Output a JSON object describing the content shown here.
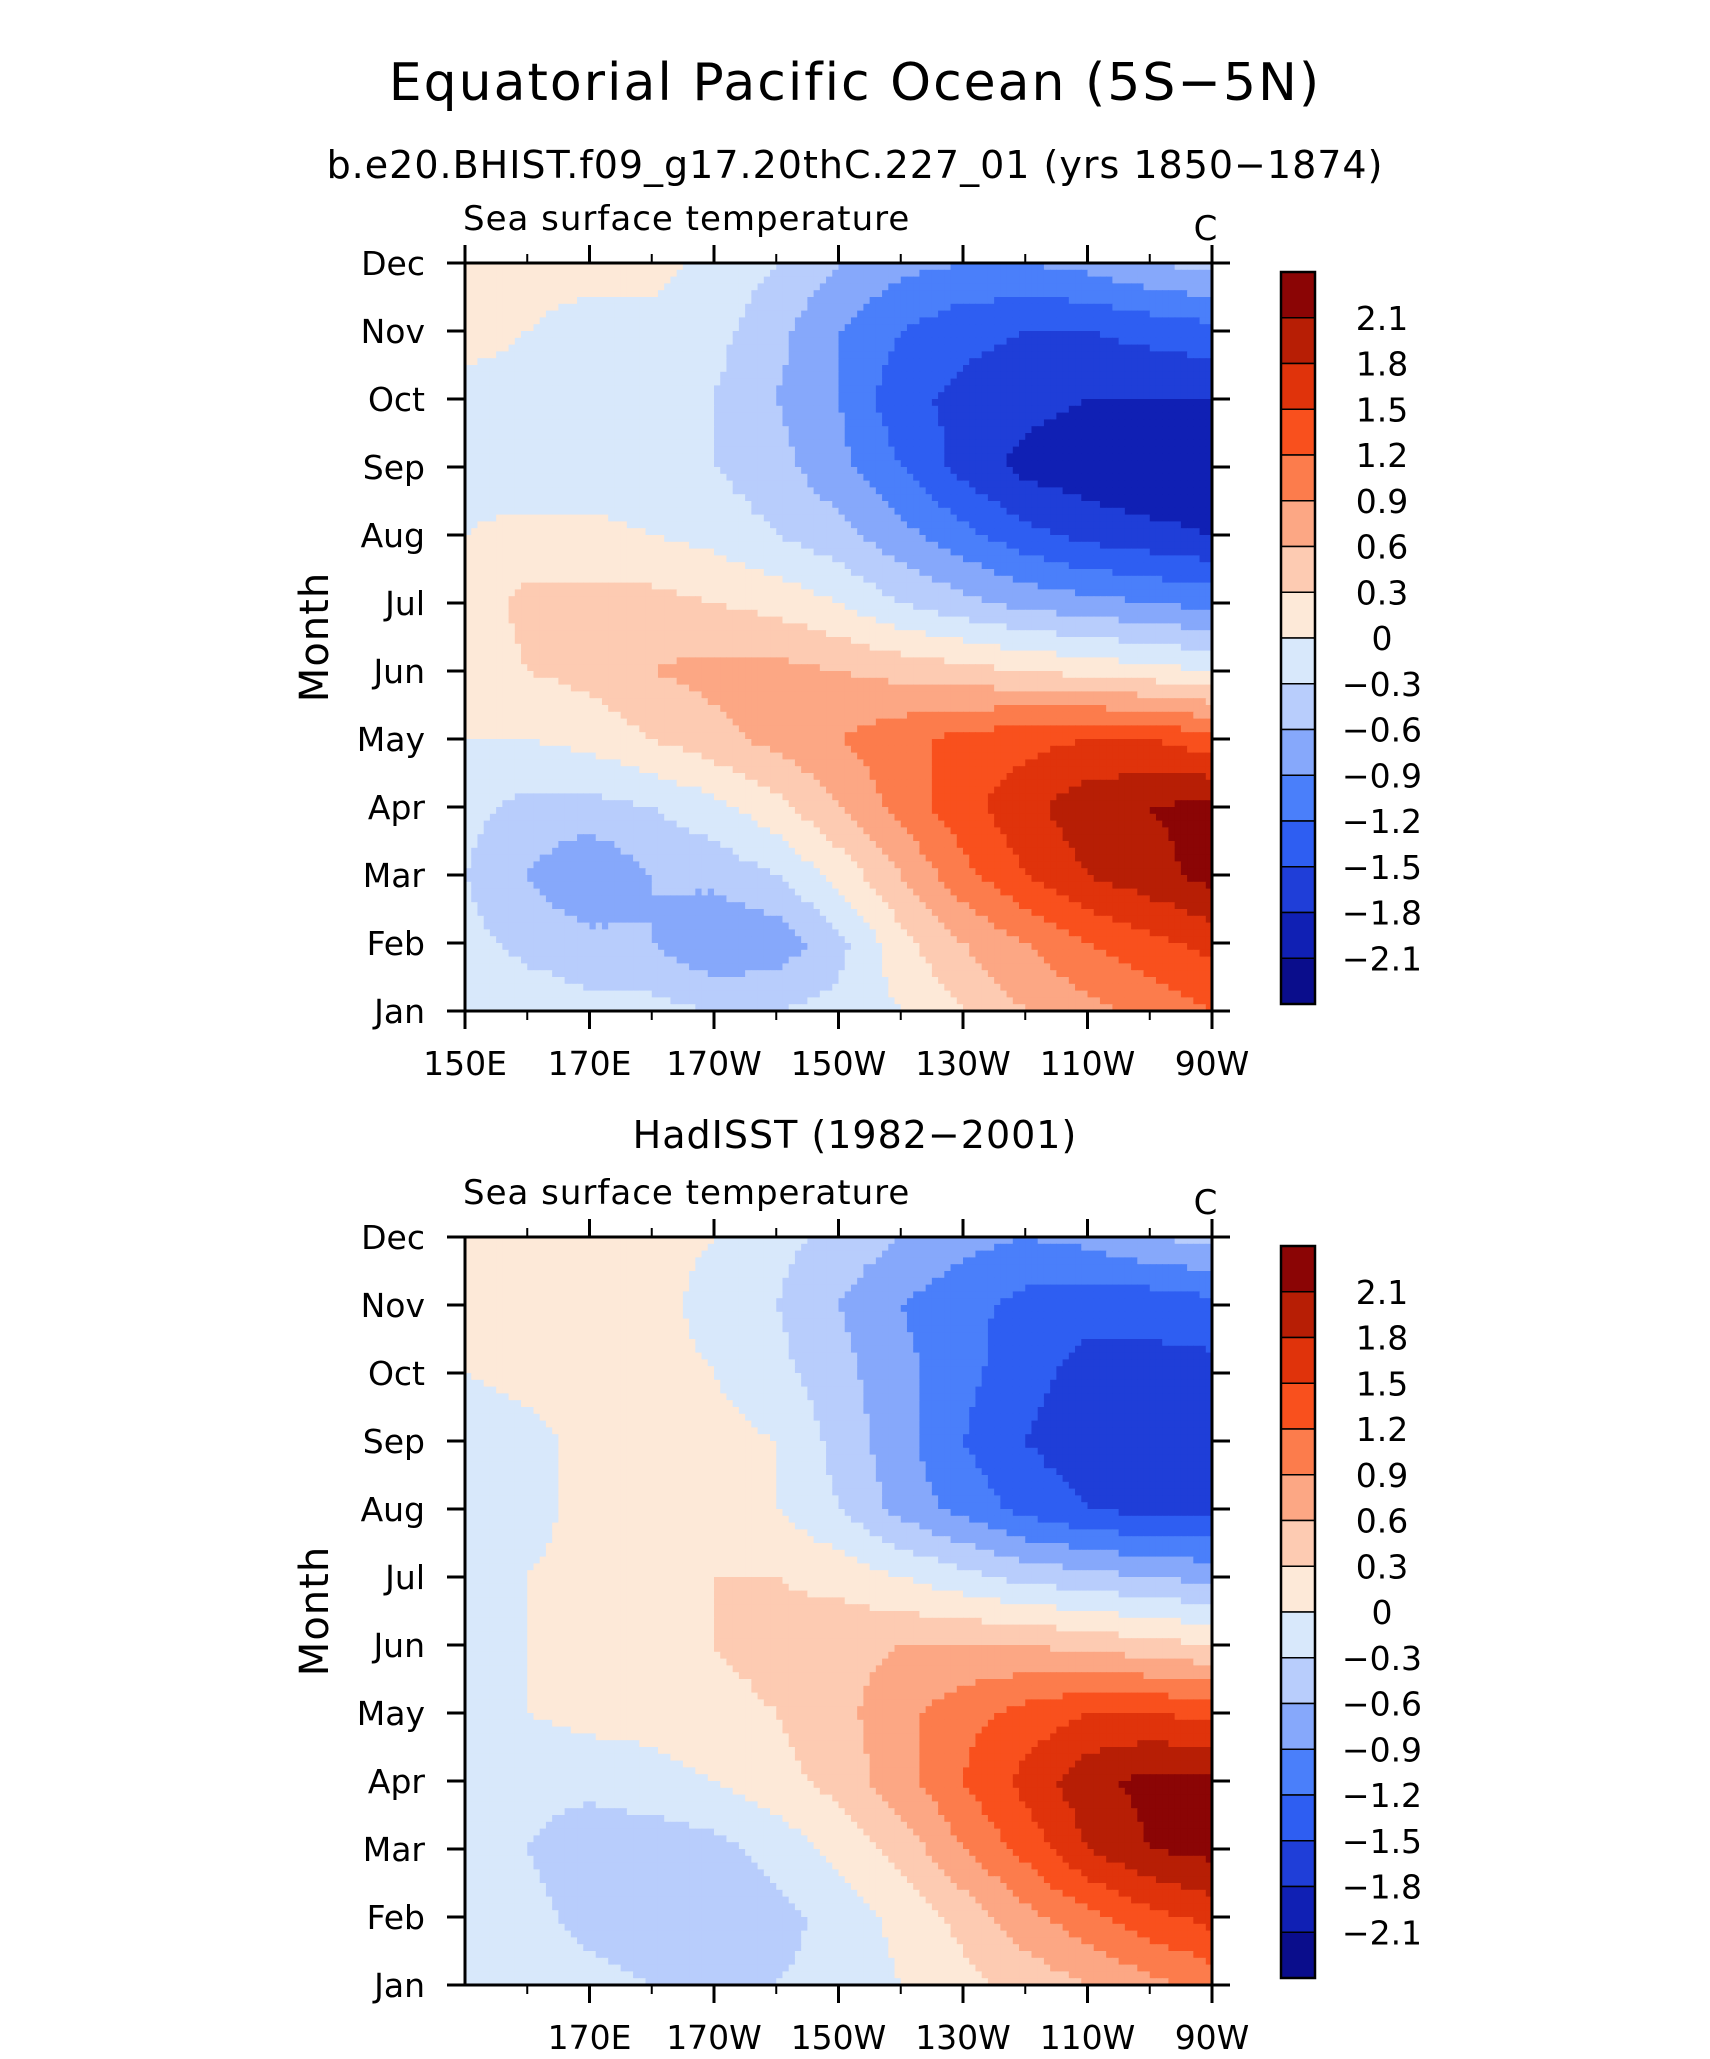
{
  "figure": {
    "title": "Equatorial Pacific Ocean (5S−5N)",
    "colorbar_levels": [
      "2.1",
      "1.8",
      "1.5",
      "1.2",
      "0.9",
      "0.6",
      "0.3",
      "0",
      "−0.3",
      "−0.6",
      "−0.9",
      "−1.2",
      "−1.5",
      "−1.8",
      "−2.1"
    ]
  },
  "chart_data": [
    {
      "type": "heatmap",
      "title": "b.e20.BHIST.f09_g17.20thC.227_01 (yrs 1850−1874)",
      "left_label": "Sea surface temperature",
      "units": "C",
      "ylabel": "Month",
      "xlabel": "",
      "x_tick_labels": [
        "150E",
        "170E",
        "170W",
        "150W",
        "130W",
        "110W",
        "90W"
      ],
      "x_tick_values": [
        150,
        170,
        190,
        210,
        230,
        250,
        270
      ],
      "xlim": [
        150,
        270
      ],
      "y_tick_labels": [
        "Jan",
        "Feb",
        "Mar",
        "Apr",
        "May",
        "Jun",
        "Jul",
        "Aug",
        "Sep",
        "Oct",
        "Nov",
        "Dec"
      ],
      "ylim": [
        1,
        12
      ],
      "colorscale": {
        "levels": [
          -2.1,
          -1.8,
          -1.5,
          -1.2,
          -0.9,
          -0.6,
          -0.3,
          0,
          0.3,
          0.6,
          0.9,
          1.2,
          1.5,
          1.8,
          2.1
        ],
        "colors": [
          "#0a0d8c",
          "#1020b4",
          "#1f3ed8",
          "#2e5ef2",
          "#4a7ffa",
          "#86a8fb",
          "#b8cdfc",
          "#d8e8fb",
          "#fde9d8",
          "#fdcbb2",
          "#fca784",
          "#fc7c4c",
          "#f9501d",
          "#e0330b",
          "#b71e05",
          "#8b0505"
        ]
      },
      "x": [
        150,
        160,
        170,
        180,
        190,
        200,
        210,
        220,
        230,
        240,
        250,
        260,
        270
      ],
      "y": [
        1,
        2,
        3,
        4,
        5,
        6,
        7,
        8,
        9,
        10,
        11,
        12
      ],
      "z": [
        [
          0.0,
          -0.1,
          -0.2,
          -0.2,
          -0.3,
          -0.3,
          -0.2,
          0.0,
          0.3,
          0.6,
          0.8,
          1.0,
          1.2
        ],
        [
          -0.2,
          -0.4,
          -0.5,
          -0.6,
          -0.9,
          -0.8,
          -0.4,
          0.2,
          0.6,
          0.9,
          1.2,
          1.4,
          1.6
        ],
        [
          -0.3,
          -0.6,
          -0.9,
          -0.6,
          -0.5,
          -0.3,
          0.1,
          0.6,
          1.1,
          1.5,
          1.8,
          2.0,
          2.2
        ],
        [
          -0.2,
          -0.4,
          -0.4,
          -0.3,
          -0.1,
          0.2,
          0.6,
          1.0,
          1.4,
          1.7,
          2.0,
          2.1,
          2.2
        ],
        [
          0.0,
          0.0,
          0.1,
          0.3,
          0.5,
          0.7,
          0.9,
          1.1,
          1.3,
          1.4,
          1.5,
          1.5,
          1.3
        ],
        [
          0.1,
          0.3,
          0.4,
          0.6,
          0.7,
          0.7,
          0.6,
          0.5,
          0.4,
          0.3,
          0.2,
          0.1,
          0.0
        ],
        [
          0.1,
          0.4,
          0.4,
          0.4,
          0.3,
          0.2,
          0.0,
          -0.3,
          -0.5,
          -0.7,
          -0.8,
          -0.9,
          -1.0
        ],
        [
          0.0,
          0.1,
          0.1,
          0.0,
          -0.1,
          -0.3,
          -0.5,
          -0.8,
          -1.1,
          -1.4,
          -1.6,
          -1.7,
          -1.8
        ],
        [
          -0.1,
          -0.2,
          -0.2,
          -0.2,
          -0.3,
          -0.5,
          -0.8,
          -1.2,
          -1.6,
          -1.9,
          -2.0,
          -2.1,
          -2.1
        ],
        [
          -0.1,
          -0.1,
          -0.1,
          -0.2,
          -0.3,
          -0.6,
          -0.9,
          -1.4,
          -1.6,
          -1.7,
          -1.8,
          -1.8,
          -1.8
        ],
        [
          0.1,
          0.0,
          -0.1,
          -0.1,
          -0.2,
          -0.5,
          -0.9,
          -1.2,
          -1.4,
          -1.5,
          -1.5,
          -1.4,
          -1.3
        ],
        [
          0.1,
          0.1,
          0.1,
          0.1,
          -0.1,
          -0.3,
          -0.6,
          -0.8,
          -0.9,
          -0.9,
          -0.8,
          -0.6,
          -0.5
        ]
      ]
    },
    {
      "type": "heatmap",
      "title": "HadISST (1982−2001)",
      "left_label": "Sea surface temperature",
      "units": "C",
      "ylabel": "Month",
      "xlabel": "",
      "x_tick_labels": [
        "170E",
        "170W",
        "150W",
        "130W",
        "110W",
        "90W"
      ],
      "x_tick_values": [
        170,
        190,
        210,
        230,
        250,
        270
      ],
      "xlim": [
        150,
        270
      ],
      "y_tick_labels": [
        "Jan",
        "Feb",
        "Mar",
        "Apr",
        "May",
        "Jun",
        "Jul",
        "Aug",
        "Sep",
        "Oct",
        "Nov",
        "Dec"
      ],
      "ylim": [
        1,
        12
      ],
      "colorscale": {
        "levels": [
          -2.1,
          -1.8,
          -1.5,
          -1.2,
          -0.9,
          -0.6,
          -0.3,
          0,
          0.3,
          0.6,
          0.9,
          1.2,
          1.5,
          1.8,
          2.1
        ],
        "colors": [
          "#0a0d8c",
          "#1020b4",
          "#1f3ed8",
          "#2e5ef2",
          "#4a7ffa",
          "#86a8fb",
          "#b8cdfc",
          "#d8e8fb",
          "#fde9d8",
          "#fdcbb2",
          "#fca784",
          "#fc7c4c",
          "#f9501d",
          "#e0330b",
          "#b71e05",
          "#8b0505"
        ]
      },
      "x": [
        150,
        160,
        170,
        180,
        190,
        200,
        210,
        220,
        230,
        240,
        250,
        260,
        270
      ],
      "y": [
        1,
        2,
        3,
        4,
        5,
        6,
        7,
        8,
        9,
        10,
        11,
        12
      ],
      "z": [
        [
          0.0,
          -0.1,
          -0.2,
          -0.3,
          -0.3,
          -0.3,
          -0.2,
          0.0,
          0.2,
          0.4,
          0.6,
          0.8,
          1.0
        ],
        [
          -0.1,
          -0.2,
          -0.4,
          -0.5,
          -0.5,
          -0.4,
          -0.2,
          0.1,
          0.4,
          0.8,
          1.1,
          1.4,
          1.6
        ],
        [
          -0.1,
          -0.3,
          -0.5,
          -0.5,
          -0.4,
          -0.2,
          0.1,
          0.4,
          0.9,
          1.3,
          1.8,
          2.1,
          2.2
        ],
        [
          -0.1,
          -0.2,
          -0.2,
          -0.1,
          0.0,
          0.2,
          0.4,
          0.8,
          1.2,
          1.6,
          2.0,
          2.2,
          2.2
        ],
        [
          0.0,
          0.0,
          0.1,
          0.1,
          0.2,
          0.3,
          0.5,
          0.8,
          1.1,
          1.3,
          1.5,
          1.5,
          1.4
        ],
        [
          -0.1,
          0.0,
          0.1,
          0.1,
          0.3,
          0.4,
          0.5,
          0.6,
          0.6,
          0.6,
          0.5,
          0.4,
          0.3
        ],
        [
          -0.1,
          0.0,
          0.1,
          0.1,
          0.3,
          0.3,
          0.2,
          0.0,
          -0.2,
          -0.4,
          -0.5,
          -0.6,
          -0.7
        ],
        [
          -0.2,
          -0.1,
          0.1,
          0.1,
          0.1,
          0.0,
          -0.3,
          -0.7,
          -1.0,
          -1.3,
          -1.5,
          -1.6,
          -1.6
        ],
        [
          -0.2,
          -0.1,
          0.1,
          0.3,
          0.1,
          0.0,
          -0.4,
          -0.8,
          -1.2,
          -1.5,
          -1.7,
          -1.8,
          -1.8
        ],
        [
          0.0,
          0.1,
          0.1,
          0.1,
          0.0,
          -0.2,
          -0.5,
          -0.8,
          -1.1,
          -1.4,
          -1.6,
          -1.6,
          -1.6
        ],
        [
          0.1,
          0.1,
          0.1,
          0.1,
          -0.1,
          -0.3,
          -0.6,
          -0.9,
          -1.1,
          -1.3,
          -1.4,
          -1.4,
          -1.3
        ],
        [
          0.1,
          0.1,
          0.1,
          0.1,
          0.0,
          -0.2,
          -0.4,
          -0.6,
          -0.8,
          -0.9,
          -0.8,
          -0.6,
          -0.5
        ]
      ]
    }
  ]
}
